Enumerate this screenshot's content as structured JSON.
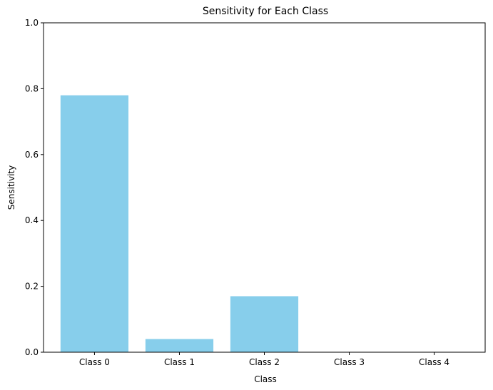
{
  "chart_data": {
    "type": "bar",
    "title": "Sensitivity for Each Class",
    "xlabel": "Class",
    "ylabel": "Sensitivity",
    "categories": [
      "Class 0",
      "Class 1",
      "Class 2",
      "Class 3",
      "Class 4"
    ],
    "values": [
      0.78,
      0.04,
      0.17,
      0.0,
      0.0
    ],
    "ylim": [
      0,
      1
    ],
    "yticks": [
      0.0,
      0.2,
      0.4,
      0.6,
      0.8,
      1.0
    ],
    "ytick_labels": [
      "0.0",
      "0.2",
      "0.4",
      "0.6",
      "0.8",
      "1.0"
    ],
    "bar_color": "#87ceeb",
    "grid": false,
    "legend": "none"
  }
}
